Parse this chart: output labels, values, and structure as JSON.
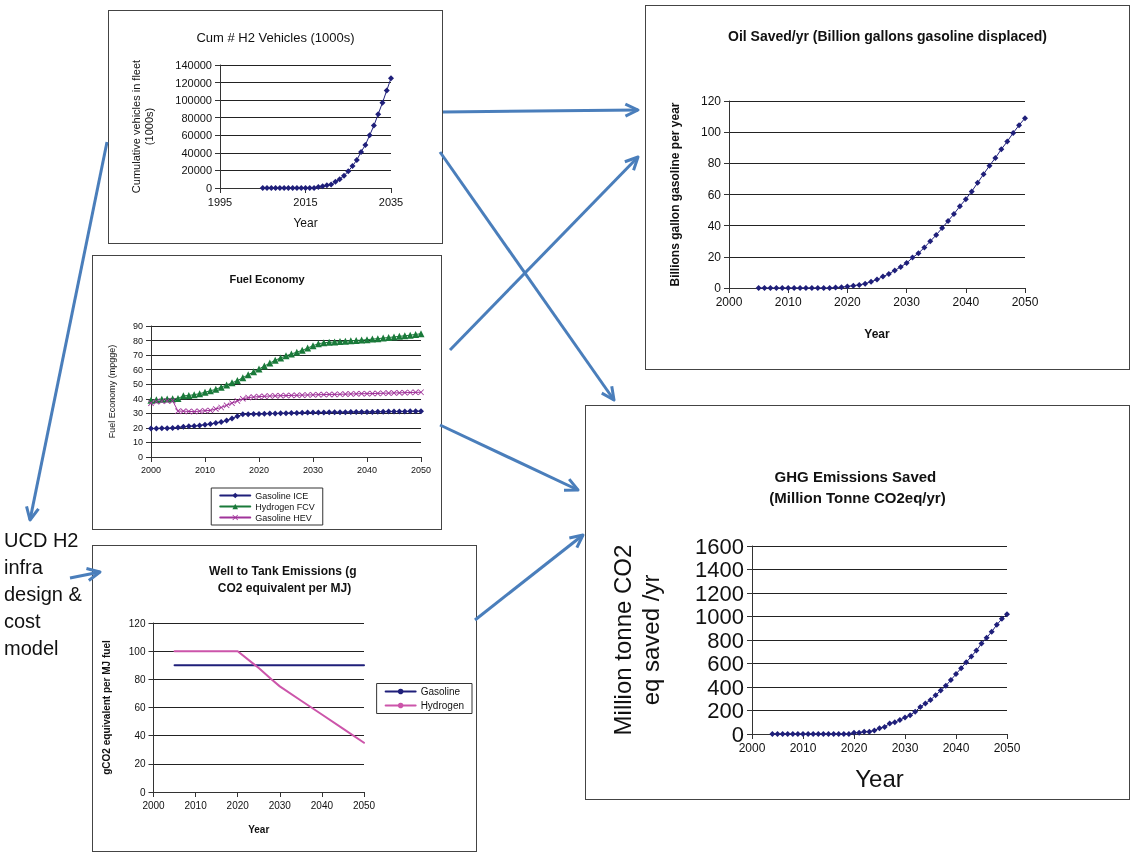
{
  "chart_data": [
    {
      "type": "line",
      "title": "Cum # H2 Vehicles (1000s)",
      "xlabel": "Year",
      "ylabel": "Cumulative vehicles in fleet (1000s)",
      "marker": "diamond",
      "grid": "y",
      "xlim": [
        1995,
        2035
      ],
      "xticks": [
        1995,
        2015,
        2035
      ],
      "ylim": [
        0,
        140000
      ],
      "yticks": [
        0,
        20000,
        40000,
        60000,
        80000,
        100000,
        120000,
        140000
      ],
      "x": [
        2005,
        2006,
        2007,
        2008,
        2009,
        2010,
        2011,
        2012,
        2013,
        2014,
        2015,
        2016,
        2017,
        2018,
        2019,
        2020,
        2021,
        2022,
        2023,
        2024,
        2025,
        2026,
        2027,
        2028,
        2029,
        2030,
        2031,
        2032,
        2033,
        2034,
        2035
      ],
      "series": [
        {
          "color": "#1f1f7a",
          "values": [
            0,
            0,
            0,
            0,
            0,
            0,
            0,
            0,
            0,
            0,
            0,
            0,
            0,
            1000,
            2000,
            3000,
            4000,
            7000,
            10000,
            14000,
            19000,
            25000,
            32000,
            41000,
            49000,
            60000,
            71000,
            84000,
            97000,
            111000,
            125000
          ]
        }
      ]
    },
    {
      "type": "line",
      "title": "Oil Saved/yr (Billion gallons gasoline displaced)",
      "xlabel": "Year",
      "ylabel": "Billions gallon gasoline per year",
      "marker": "diamond",
      "grid": "y",
      "xlim": [
        2000,
        2050
      ],
      "xticks": [
        2000,
        2010,
        2020,
        2030,
        2040,
        2050
      ],
      "ylim": [
        0,
        120
      ],
      "yticks": [
        0,
        20,
        40,
        60,
        80,
        100,
        120
      ],
      "x": [
        2005,
        2006,
        2007,
        2008,
        2009,
        2010,
        2011,
        2012,
        2013,
        2014,
        2015,
        2016,
        2017,
        2018,
        2019,
        2020,
        2021,
        2022,
        2023,
        2024,
        2025,
        2026,
        2027,
        2028,
        2029,
        2030,
        2031,
        2032,
        2033,
        2034,
        2035,
        2036,
        2037,
        2038,
        2039,
        2040,
        2041,
        2042,
        2043,
        2044,
        2045,
        2046,
        2047,
        2048,
        2049,
        2050
      ],
      "series": [
        {
          "color": "#1f1f7a",
          "values": [
            0,
            0,
            0,
            0,
            0,
            0,
            0,
            0,
            0,
            0,
            0,
            0,
            0,
            0.3,
            0.5,
            1,
            1.5,
            2,
            2.8,
            4,
            5.5,
            7.3,
            9,
            11.3,
            13.5,
            16,
            19.5,
            22.3,
            26,
            30,
            34,
            38.5,
            43,
            47.5,
            52.5,
            57,
            62,
            67.5,
            73,
            78.5,
            83.5,
            89,
            94,
            99.5,
            104.5,
            109
          ]
        }
      ]
    },
    {
      "type": "line",
      "title": "Fuel Economy",
      "ylabel": "Fuel Economy (mpgge)",
      "grid": "y",
      "legend": "bottom",
      "xlim": [
        2000,
        2050
      ],
      "xticks": [
        2000,
        2010,
        2020,
        2030,
        2040,
        2050
      ],
      "ylim": [
        0,
        90
      ],
      "yticks": [
        0,
        10,
        20,
        30,
        40,
        50,
        60,
        70,
        80,
        90
      ],
      "x": [
        2000,
        2001,
        2002,
        2003,
        2004,
        2005,
        2006,
        2007,
        2008,
        2009,
        2010,
        2011,
        2012,
        2013,
        2014,
        2015,
        2016,
        2017,
        2018,
        2019,
        2020,
        2021,
        2022,
        2023,
        2024,
        2025,
        2026,
        2027,
        2028,
        2029,
        2030,
        2031,
        2032,
        2033,
        2034,
        2035,
        2036,
        2037,
        2038,
        2039,
        2040,
        2041,
        2042,
        2043,
        2044,
        2045,
        2046,
        2047,
        2048,
        2049,
        2050
      ],
      "series": [
        {
          "name": "Gasoline ICE",
          "color": "#1f1f7a",
          "marker": "diamond",
          "values": [
            19.5,
            19.6,
            19.7,
            19.8,
            19.9,
            20.3,
            20.7,
            21.1,
            21.3,
            21.6,
            22.2,
            22.7,
            23.3,
            24,
            25,
            26.5,
            28,
            29.3,
            29.4,
            29.5,
            29.6,
            29.7,
            29.8,
            29.9,
            30,
            30.1,
            30.2,
            30.3,
            30.4,
            30.5,
            30.5,
            30.6,
            30.6,
            30.7,
            30.7,
            30.8,
            30.8,
            30.9,
            30.9,
            31,
            31,
            31,
            31.1,
            31.1,
            31.2,
            31.2,
            31.3,
            31.3,
            31.4,
            31.4,
            31.5
          ]
        },
        {
          "name": "Hydrogen FCV",
          "color": "#1a7a3a",
          "marker": "triangle",
          "values": [
            39,
            39.3,
            39.6,
            39.9,
            40,
            40.2,
            42,
            42.3,
            42.8,
            43.5,
            44.5,
            45.5,
            46.5,
            48,
            49.5,
            51,
            52.5,
            54.5,
            56.5,
            58.5,
            60.5,
            62.5,
            64.5,
            66.5,
            68,
            69.5,
            70.8,
            72,
            73.3,
            74.8,
            76.5,
            77.8,
            78.5,
            78.8,
            79,
            79.3,
            79.6,
            79.8,
            80.1,
            80.3,
            80.6,
            81,
            81.3,
            81.7,
            82.1,
            82.5,
            82.9,
            83.3,
            83.7,
            84.2,
            84.7
          ]
        },
        {
          "name": "Gasoline HEV",
          "color": "#a0339a",
          "marker": "cross",
          "values": [
            37,
            38,
            38.3,
            38.5,
            38.7,
            31.5,
            31.5,
            31.3,
            31.2,
            31.5,
            31.8,
            32,
            33,
            34,
            35.5,
            37,
            38.5,
            40,
            40.8,
            41.2,
            41.5,
            41.7,
            41.9,
            42,
            42.1,
            42.2,
            42.3,
            42.4,
            42.5,
            42.6,
            42.7,
            42.8,
            42.9,
            43,
            43,
            43.1,
            43.2,
            43.3,
            43.4,
            43.5,
            43.5,
            43.6,
            43.7,
            43.8,
            43.9,
            44,
            44.1,
            44.2,
            44.3,
            44.4,
            44.5
          ]
        }
      ]
    },
    {
      "type": "line",
      "title": "GHG Emissions Saved (Million Tonne CO2eq/yr)",
      "xlabel": "Year",
      "ylabel": "Million tonne CO2 eq saved /yr",
      "marker": "diamond",
      "grid": "y",
      "xlim": [
        2000,
        2050
      ],
      "xticks": [
        2000,
        2010,
        2020,
        2030,
        2040,
        2050
      ],
      "ylim": [
        0,
        1600
      ],
      "yticks": [
        0,
        200,
        400,
        600,
        800,
        1000,
        1200,
        1400,
        1600
      ],
      "x": [
        2004,
        2005,
        2006,
        2007,
        2008,
        2009,
        2010,
        2011,
        2012,
        2013,
        2014,
        2015,
        2016,
        2017,
        2018,
        2019,
        2020,
        2021,
        2022,
        2023,
        2024,
        2025,
        2026,
        2027,
        2028,
        2029,
        2030,
        2031,
        2032,
        2033,
        2034,
        2035,
        2036,
        2037,
        2038,
        2039,
        2040,
        2041,
        2042,
        2043,
        2044,
        2045,
        2046,
        2047,
        2048,
        2049,
        2050
      ],
      "series": [
        {
          "color": "#1f1f7a",
          "values": [
            0,
            0,
            0,
            0,
            0,
            0,
            0,
            0,
            0,
            0,
            0,
            0,
            0,
            0,
            0,
            0,
            10,
            10,
            20,
            20,
            30,
            50,
            60,
            90,
            100,
            120,
            140,
            160,
            190,
            230,
            260,
            290,
            330,
            370,
            410,
            460,
            510,
            560,
            610,
            660,
            710,
            770,
            820,
            870,
            930,
            980,
            1020
          ]
        }
      ]
    },
    {
      "type": "other",
      "annotations": [
        "UCD H2 infra design & cost model"
      ]
    },
    {
      "type": "line",
      "title": "Well to Tank Emissions (g CO2 equivalent per MJ)",
      "xlabel": "Year",
      "ylabel": "gCO2 equivalent per MJ fuel",
      "grid": "y",
      "legend": "right",
      "xlim": [
        2000,
        2050
      ],
      "xticks": [
        2000,
        2010,
        2020,
        2030,
        2040,
        2050
      ],
      "ylim": [
        0,
        120
      ],
      "yticks": [
        0,
        20,
        40,
        60,
        80,
        100,
        120
      ],
      "series": [
        {
          "name": "Gasoline",
          "color": "#1f1f7a",
          "x": [
            2005,
            2050
          ],
          "values": [
            90,
            90
          ]
        },
        {
          "name": "Hydrogen",
          "color": "#cc55aa",
          "x": [
            2005,
            2020,
            2025,
            2028,
            2030,
            2035,
            2040,
            2045,
            2050
          ],
          "values": [
            100,
            100,
            88,
            80,
            75,
            65,
            55,
            45,
            35
          ]
        }
      ]
    }
  ]
}
